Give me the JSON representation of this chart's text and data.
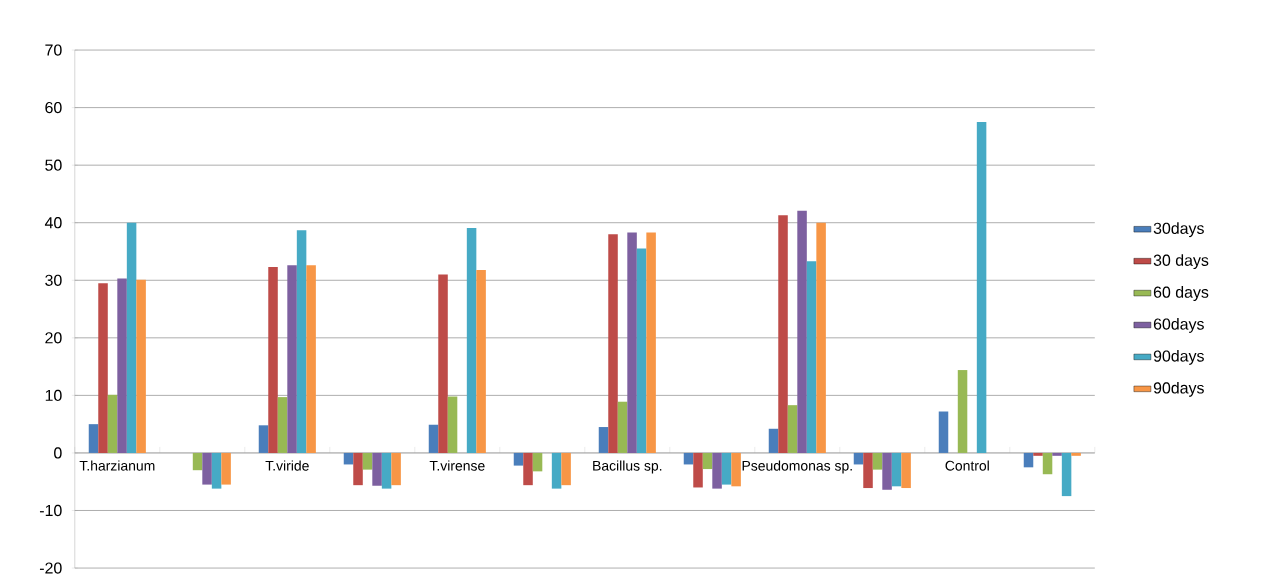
{
  "chart_data": {
    "type": "bar",
    "categories": [
      "T.harzianum",
      null,
      "T.viride",
      null,
      "T.virense",
      null,
      "Bacillus sp.",
      null,
      "Pseudomonas sp.",
      null,
      "Control",
      null
    ],
    "series": [
      {
        "name": "30days",
        "color": "#4a7ebb",
        "values": [
          5.0,
          0,
          4.8,
          -2.0,
          4.9,
          -2.2,
          4.5,
          -2.0,
          4.2,
          -2.0,
          7.2,
          -2.5
        ]
      },
      {
        "name": "30 days",
        "color": "#be4b48",
        "values": [
          29.5,
          0,
          32.3,
          -5.6,
          31.0,
          -5.6,
          38.0,
          -6.0,
          41.3,
          -6.1,
          0,
          -0.5
        ]
      },
      {
        "name": "60 days",
        "color": "#98b954",
        "values": [
          10.1,
          -3.0,
          9.7,
          -2.9,
          9.8,
          -3.2,
          8.9,
          -2.8,
          8.3,
          -2.9,
          14.4,
          -3.7
        ]
      },
      {
        "name": "60days",
        "color": "#7d60a0",
        "values": [
          30.3,
          -5.5,
          32.6,
          -5.7,
          0,
          0,
          38.3,
          -6.2,
          42.1,
          -6.4,
          0,
          -0.5
        ]
      },
      {
        "name": "90days",
        "color": "#46aac5",
        "values": [
          40.0,
          -6.2,
          38.7,
          -6.2,
          39.1,
          -6.2,
          35.5,
          -5.5,
          33.3,
          -5.8,
          57.5,
          -7.5
        ]
      },
      {
        "name": "90days",
        "color": "#f79646",
        "values": [
          30.1,
          -5.5,
          32.6,
          -5.6,
          31.8,
          -5.6,
          38.3,
          -5.8,
          40.0,
          -6.1,
          0,
          -0.5
        ]
      }
    ],
    "ylim": [
      -20,
      70
    ],
    "yticks": [
      -20,
      -10,
      0,
      10,
      20,
      30,
      40,
      50,
      60,
      70
    ],
    "grid": "y",
    "legend": "right"
  }
}
